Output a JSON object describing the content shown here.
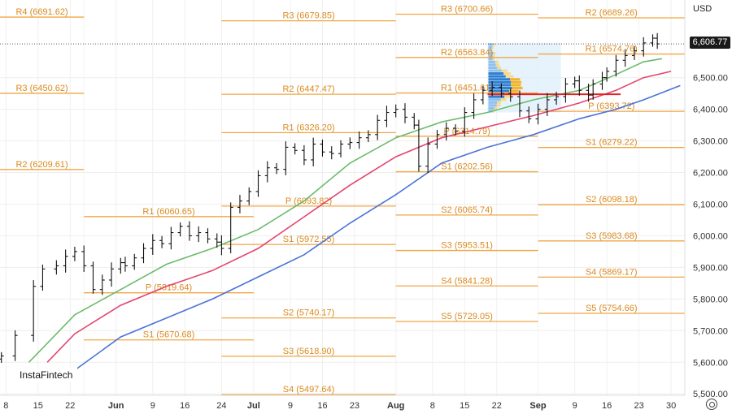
{
  "chart_data": {
    "type": "candlestick",
    "currency": "USD",
    "current_price": "6,606.77",
    "y_ticks": [
      "6,500.00",
      "6,400.00",
      "6,300.00",
      "6,200.00",
      "6,100.00",
      "6,000.00",
      "5,900.00",
      "5,800.00",
      "5,700.00",
      "5,600.00",
      "5,500.00"
    ],
    "y_tick_values": [
      6500,
      6400,
      6300,
      6200,
      6100,
      6000,
      5900,
      5800,
      5700,
      5600,
      5500
    ],
    "x_ticks": [
      "8",
      "15",
      "22",
      "Jun",
      "9",
      "16",
      "24",
      "Jul",
      "9",
      "16",
      "23",
      "Aug",
      "8",
      "15",
      "22",
      "Sep",
      "9",
      "16",
      "23",
      "30"
    ],
    "x_tick_day": [
      -15,
      -8,
      -1,
      9,
      17,
      24,
      32,
      39,
      47,
      54,
      61,
      70,
      78,
      85,
      92,
      101,
      109,
      116,
      123,
      130
    ],
    "ylim": [
      5480,
      6720
    ],
    "pivot_levels": [
      {
        "label": "R4 (6691.62)",
        "value": 6691.62,
        "x0": -30,
        "x1": 2
      },
      {
        "label": "R3 (6450.62)",
        "value": 6450.62,
        "x0": -30,
        "x1": 2
      },
      {
        "label": "R2 (6209.61)",
        "value": 6209.61,
        "x0": -30,
        "x1": 2
      },
      {
        "label": "R1 (6060.65)",
        "value": 6060.65,
        "x0": 2,
        "x1": 39
      },
      {
        "label": "P (5819.64)",
        "value": 5819.64,
        "x0": 2,
        "x1": 39
      },
      {
        "label": "S1 (5670.68)",
        "value": 5670.68,
        "x0": 2,
        "x1": 39
      },
      {
        "label": "R3 (6679.85)",
        "value": 6679.85,
        "x0": 32,
        "x1": 70
      },
      {
        "label": "R2 (6447.47)",
        "value": 6447.47,
        "x0": 32,
        "x1": 70
      },
      {
        "label": "R1 (6326.20)",
        "value": 6326.2,
        "x0": 32,
        "x1": 70
      },
      {
        "label": "P (6093.82)",
        "value": 6093.82,
        "x0": 32,
        "x1": 70
      },
      {
        "label": "S1 (5972.55)",
        "value": 5972.55,
        "x0": 32,
        "x1": 70
      },
      {
        "label": "S2 (5740.17)",
        "value": 5740.17,
        "x0": 32,
        "x1": 70
      },
      {
        "label": "S3 (5618.90)",
        "value": 5618.9,
        "x0": 32,
        "x1": 70
      },
      {
        "label": "S4 (5497.64)",
        "value": 5497.64,
        "x0": 32,
        "x1": 70
      },
      {
        "label": "R3 (6700.66)",
        "value": 6700.66,
        "x0": 70,
        "x1": 101
      },
      {
        "label": "R2 (6563.84)",
        "value": 6563.84,
        "x0": 70,
        "x1": 101
      },
      {
        "label": "R1 (6451.61)",
        "value": 6451.61,
        "x0": 70,
        "x1": 101
      },
      {
        "label": "P (6314.79)",
        "value": 6314.79,
        "x0": 70,
        "x1": 101
      },
      {
        "label": "S1 (6202.56)",
        "value": 6202.56,
        "x0": 70,
        "x1": 101
      },
      {
        "label": "S2 (6065.74)",
        "value": 6065.74,
        "x0": 70,
        "x1": 101
      },
      {
        "label": "S3 (5953.51)",
        "value": 5953.51,
        "x0": 70,
        "x1": 101
      },
      {
        "label": "S4 (5841.28)",
        "value": 5841.28,
        "x0": 70,
        "x1": 101
      },
      {
        "label": "S5 (5729.05)",
        "value": 5729.05,
        "x0": 70,
        "x1": 101
      },
      {
        "label": "R2 (6689.26)",
        "value": 6689.26,
        "x0": 101,
        "x1": 140
      },
      {
        "label": "R1 (6574.76)",
        "value": 6574.76,
        "x0": 101,
        "x1": 140
      },
      {
        "label": "P (6393.72)",
        "value": 6393.72,
        "x0": 101,
        "x1": 140
      },
      {
        "label": "S1 (6279.22)",
        "value": 6279.22,
        "x0": 101,
        "x1": 140
      },
      {
        "label": "S2 (6098.18)",
        "value": 6098.18,
        "x0": 101,
        "x1": 140
      },
      {
        "label": "S3 (5983.68)",
        "value": 5983.68,
        "x0": 101,
        "x1": 140
      },
      {
        "label": "S4 (5869.17)",
        "value": 5869.17,
        "x0": 101,
        "x1": 140
      },
      {
        "label": "S5 (5754.66)",
        "value": 5754.66,
        "x0": 101,
        "x1": 140
      }
    ],
    "series": [
      {
        "type": "close",
        "points": [
          [
            -16,
            5620
          ],
          [
            -13,
            5685
          ],
          [
            -9,
            5840
          ],
          [
            -7,
            5895
          ],
          [
            -4,
            5905
          ],
          [
            -2,
            5935
          ],
          [
            0,
            5950
          ],
          [
            2,
            5905
          ],
          [
            4,
            5830
          ],
          [
            6,
            5860
          ],
          [
            8,
            5895
          ],
          [
            10,
            5915
          ],
          [
            11,
            5905
          ],
          [
            13,
            5930
          ],
          [
            15,
            5960
          ],
          [
            17,
            5985
          ],
          [
            19,
            5975
          ],
          [
            21,
            6010
          ],
          [
            23,
            6030
          ],
          [
            25,
            6000
          ],
          [
            27,
            6010
          ],
          [
            29,
            5990
          ],
          [
            31,
            5980
          ],
          [
            32,
            5960
          ],
          [
            34,
            6090
          ],
          [
            36,
            6110
          ],
          [
            38,
            6140
          ],
          [
            40,
            6190
          ],
          [
            42,
            6215
          ],
          [
            44,
            6210
          ],
          [
            46,
            6280
          ],
          [
            48,
            6270
          ],
          [
            50,
            6240
          ],
          [
            52,
            6290
          ],
          [
            54,
            6265
          ],
          [
            56,
            6260
          ],
          [
            58,
            6290
          ],
          [
            60,
            6295
          ],
          [
            62,
            6310
          ],
          [
            64,
            6320
          ],
          [
            66,
            6365
          ],
          [
            68,
            6390
          ],
          [
            70,
            6400
          ],
          [
            72,
            6375
          ],
          [
            74,
            6350
          ],
          [
            75,
            6220
          ],
          [
            77,
            6290
          ],
          [
            79,
            6320
          ],
          [
            81,
            6340
          ],
          [
            83,
            6330
          ],
          [
            85,
            6390
          ],
          [
            87,
            6430
          ],
          [
            89,
            6460
          ],
          [
            91,
            6470
          ],
          [
            93,
            6450
          ],
          [
            95,
            6440
          ],
          [
            97,
            6395
          ],
          [
            99,
            6370
          ],
          [
            101,
            6400
          ],
          [
            103,
            6430
          ],
          [
            105,
            6440
          ],
          [
            107,
            6480
          ],
          [
            109,
            6490
          ],
          [
            110,
            6460
          ],
          [
            112,
            6445
          ],
          [
            113,
            6480
          ],
          [
            115,
            6500
          ],
          [
            116,
            6520
          ],
          [
            118,
            6555
          ],
          [
            120,
            6570
          ],
          [
            122,
            6585
          ],
          [
            124,
            6610
          ],
          [
            126,
            6625
          ],
          [
            127,
            6607
          ]
        ]
      },
      {
        "type": "ma",
        "name": "ema_green",
        "color": "#6cbb6c",
        "points": [
          [
            -10,
            5600
          ],
          [
            -6,
            5660
          ],
          [
            0,
            5750
          ],
          [
            10,
            5830
          ],
          [
            20,
            5910
          ],
          [
            30,
            5960
          ],
          [
            40,
            6020
          ],
          [
            50,
            6110
          ],
          [
            60,
            6230
          ],
          [
            70,
            6310
          ],
          [
            80,
            6360
          ],
          [
            90,
            6390
          ],
          [
            100,
            6430
          ],
          [
            110,
            6460
          ],
          [
            118,
            6510
          ],
          [
            124,
            6550
          ],
          [
            128,
            6560
          ]
        ]
      },
      {
        "type": "ma",
        "name": "ema_red",
        "color": "#e3456f",
        "points": [
          [
            -6,
            5600
          ],
          [
            0,
            5690
          ],
          [
            10,
            5780
          ],
          [
            20,
            5840
          ],
          [
            30,
            5890
          ],
          [
            40,
            5960
          ],
          [
            50,
            6060
          ],
          [
            60,
            6160
          ],
          [
            70,
            6250
          ],
          [
            80,
            6310
          ],
          [
            90,
            6345
          ],
          [
            100,
            6380
          ],
          [
            110,
            6420
          ],
          [
            118,
            6460
          ],
          [
            124,
            6500
          ],
          [
            130,
            6520
          ]
        ]
      },
      {
        "type": "ma",
        "name": "ema_blue",
        "color": "#4a73d8",
        "points": [
          [
            0,
            5575
          ],
          [
            10,
            5680
          ],
          [
            20,
            5740
          ],
          [
            30,
            5800
          ],
          [
            40,
            5870
          ],
          [
            50,
            5940
          ],
          [
            60,
            6040
          ],
          [
            70,
            6130
          ],
          [
            80,
            6230
          ],
          [
            90,
            6280
          ],
          [
            100,
            6320
          ],
          [
            110,
            6370
          ],
          [
            118,
            6400
          ],
          [
            124,
            6430
          ],
          [
            132,
            6475
          ]
        ]
      }
    ],
    "poc_level": 6447.47,
    "volume_profile": {
      "x0": 90,
      "x1": 106,
      "y0": 6390,
      "y1": 6610
    },
    "watermark": "InstaFintech"
  }
}
